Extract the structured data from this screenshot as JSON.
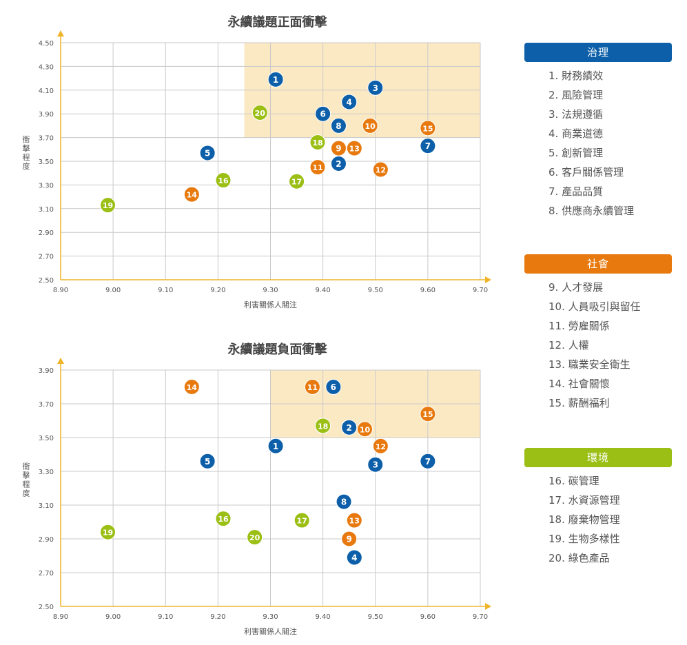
{
  "colors": {
    "governance": "#0c5fa8",
    "social": "#e8790e",
    "environment": "#9bbf15",
    "highlight": "#fbe9c4",
    "axis_arrow": "#f0b428"
  },
  "legend": [
    {
      "key": "governance",
      "header": "治理",
      "items": [
        "1. 財務績效",
        "2. 風險管理",
        "3. 法規遵循",
        "4. 商業道德",
        "5. 創新管理",
        "6. 客戶關係管理",
        "7. 產品品質",
        "8. 供應商永續管理"
      ]
    },
    {
      "key": "social",
      "header": "社會",
      "items": [
        "9. 人才發展",
        "10. 人員吸引與留任",
        "11. 勞雇關係",
        "12. 人權",
        "13. 職業安全衛生",
        "14. 社會關懷",
        "15. 薪酬福利"
      ]
    },
    {
      "key": "environment",
      "header": "環境",
      "items": [
        "16. 碳管理",
        "17. 水資源管理",
        "18. 廢棄物管理",
        "19. 生物多樣性",
        "20. 綠色產品"
      ]
    }
  ],
  "chart_data": [
    {
      "type": "scatter",
      "title": "永續議題正面衝擊",
      "xlabel": "利害關係人關注",
      "ylabel": "衝擊程度",
      "xlim": [
        8.9,
        9.7
      ],
      "ylim": [
        2.5,
        4.5
      ],
      "xticks": [
        "8.90",
        "9.00",
        "9.10",
        "9.20",
        "9.30",
        "9.40",
        "9.50",
        "9.60",
        "9.70"
      ],
      "yticks": [
        "2.50",
        "2.70",
        "2.90",
        "3.10",
        "3.30",
        "3.50",
        "3.70",
        "3.90",
        "4.10",
        "4.30",
        "4.50"
      ],
      "grid": true,
      "highlight_region": {
        "x": [
          9.25,
          9.7
        ],
        "y": [
          3.7,
          4.5
        ]
      },
      "points": [
        {
          "id": "1",
          "group": "governance",
          "x": 9.31,
          "y": 4.19
        },
        {
          "id": "2",
          "group": "governance",
          "x": 9.43,
          "y": 3.48
        },
        {
          "id": "3",
          "group": "governance",
          "x": 9.5,
          "y": 4.12
        },
        {
          "id": "4",
          "group": "governance",
          "x": 9.45,
          "y": 4.0
        },
        {
          "id": "5",
          "group": "governance",
          "x": 9.18,
          "y": 3.57
        },
        {
          "id": "6",
          "group": "governance",
          "x": 9.4,
          "y": 3.9
        },
        {
          "id": "7",
          "group": "governance",
          "x": 9.6,
          "y": 3.63
        },
        {
          "id": "8",
          "group": "governance",
          "x": 9.43,
          "y": 3.8
        },
        {
          "id": "9",
          "group": "social",
          "x": 9.43,
          "y": 3.61
        },
        {
          "id": "10",
          "group": "social",
          "x": 9.49,
          "y": 3.8
        },
        {
          "id": "11",
          "group": "social",
          "x": 9.39,
          "y": 3.45
        },
        {
          "id": "12",
          "group": "social",
          "x": 9.51,
          "y": 3.43
        },
        {
          "id": "13",
          "group": "social",
          "x": 9.46,
          "y": 3.61
        },
        {
          "id": "14",
          "group": "social",
          "x": 9.15,
          "y": 3.22
        },
        {
          "id": "15",
          "group": "social",
          "x": 9.6,
          "y": 3.78
        },
        {
          "id": "16",
          "group": "environment",
          "x": 9.21,
          "y": 3.34
        },
        {
          "id": "17",
          "group": "environment",
          "x": 9.35,
          "y": 3.33
        },
        {
          "id": "18",
          "group": "environment",
          "x": 9.39,
          "y": 3.66
        },
        {
          "id": "19",
          "group": "environment",
          "x": 8.99,
          "y": 3.13
        },
        {
          "id": "20",
          "group": "environment",
          "x": 9.28,
          "y": 3.91
        }
      ]
    },
    {
      "type": "scatter",
      "title": "永續議題負面衝擊",
      "xlabel": "利害關係人關注",
      "ylabel": "衝擊程度",
      "xlim": [
        8.9,
        9.7
      ],
      "ylim": [
        2.5,
        3.9
      ],
      "xticks": [
        "8.90",
        "9.00",
        "9.10",
        "9.20",
        "9.30",
        "9.40",
        "9.50",
        "9.60",
        "9.70"
      ],
      "yticks": [
        "2.50",
        "2.70",
        "2.90",
        "3.10",
        "3.30",
        "3.50",
        "3.70",
        "3.90"
      ],
      "grid": true,
      "highlight_region": {
        "x": [
          9.3,
          9.7
        ],
        "y": [
          3.5,
          3.9
        ]
      },
      "points": [
        {
          "id": "1",
          "group": "governance",
          "x": 9.31,
          "y": 3.45
        },
        {
          "id": "2",
          "group": "governance",
          "x": 9.45,
          "y": 3.56
        },
        {
          "id": "3",
          "group": "governance",
          "x": 9.5,
          "y": 3.34
        },
        {
          "id": "4",
          "group": "governance",
          "x": 9.46,
          "y": 2.79
        },
        {
          "id": "5",
          "group": "governance",
          "x": 9.18,
          "y": 3.36
        },
        {
          "id": "6",
          "group": "governance",
          "x": 9.42,
          "y": 3.8
        },
        {
          "id": "7",
          "group": "governance",
          "x": 9.6,
          "y": 3.36
        },
        {
          "id": "8",
          "group": "governance",
          "x": 9.44,
          "y": 3.12
        },
        {
          "id": "9",
          "group": "social",
          "x": 9.45,
          "y": 2.9
        },
        {
          "id": "10",
          "group": "social",
          "x": 9.48,
          "y": 3.55
        },
        {
          "id": "11",
          "group": "social",
          "x": 9.38,
          "y": 3.8
        },
        {
          "id": "12",
          "group": "social",
          "x": 9.51,
          "y": 3.45
        },
        {
          "id": "13",
          "group": "social",
          "x": 9.46,
          "y": 3.01
        },
        {
          "id": "14",
          "group": "social",
          "x": 9.15,
          "y": 3.8
        },
        {
          "id": "15",
          "group": "social",
          "x": 9.6,
          "y": 3.64
        },
        {
          "id": "16",
          "group": "environment",
          "x": 9.21,
          "y": 3.02
        },
        {
          "id": "17",
          "group": "environment",
          "x": 9.36,
          "y": 3.01
        },
        {
          "id": "18",
          "group": "environment",
          "x": 9.4,
          "y": 3.57
        },
        {
          "id": "19",
          "group": "environment",
          "x": 8.99,
          "y": 2.94
        },
        {
          "id": "20",
          "group": "environment",
          "x": 9.27,
          "y": 2.91
        }
      ]
    }
  ]
}
